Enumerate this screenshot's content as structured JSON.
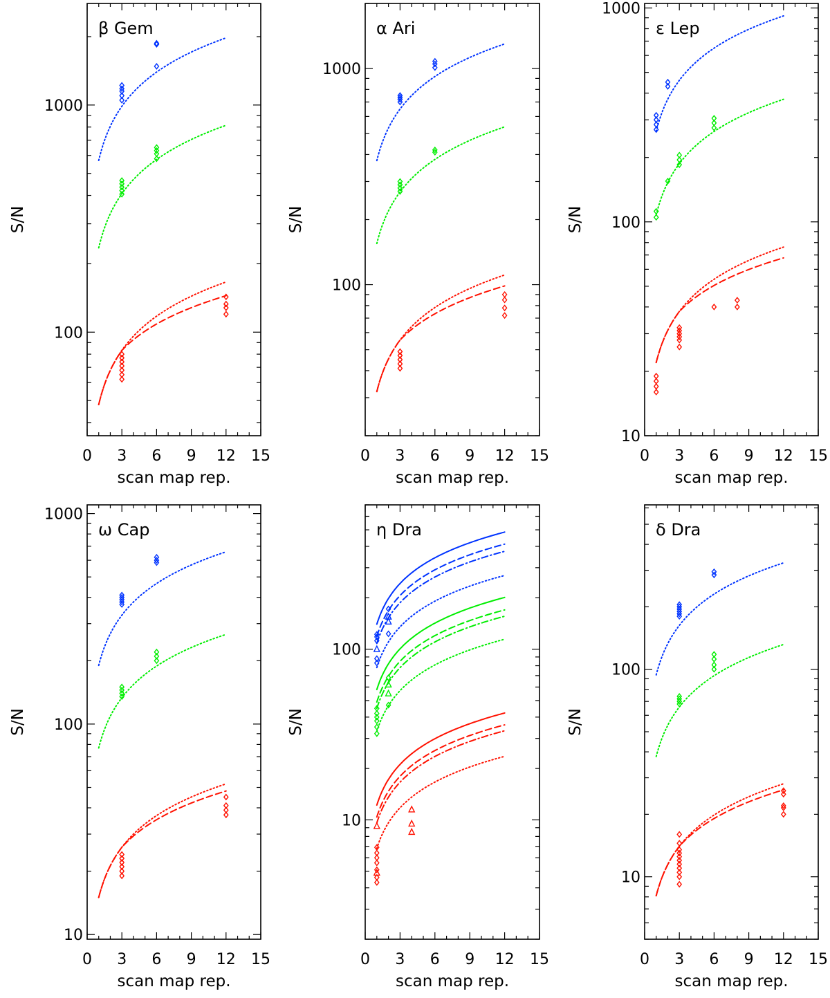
{
  "chart_data": [
    {
      "type": "scatter",
      "title": "β Gem",
      "xlabel": "scan map rep.",
      "ylabel": "S/N",
      "yscale": "log",
      "xlim": [
        0,
        15
      ],
      "ylim": [
        35,
        2800
      ],
      "xticks": [
        0,
        3,
        6,
        9,
        12,
        15
      ],
      "yticks": [
        100,
        1000
      ],
      "xtick_labels": [
        "0",
        "3",
        "6",
        "9",
        "12",
        "15"
      ],
      "ytick_labels": [
        "100",
        "1000"
      ],
      "curves": [
        {
          "color": "#0033ff",
          "style": "dotted",
          "a": 570
        },
        {
          "color": "#00ee00",
          "style": "dotted",
          "a": 235
        },
        {
          "color": "#ff1100",
          "style": "dotted",
          "a": 48
        },
        {
          "color": "#ff1100",
          "style": "dashed",
          "a": 48,
          "xs": 4,
          "sat": 0.74
        }
      ],
      "points": [
        {
          "color": "#0033ff",
          "marker": "diamond",
          "x": 3,
          "y": [
            1050,
            1100,
            1150,
            1180,
            1220
          ]
        },
        {
          "color": "#0033ff",
          "marker": "diamond",
          "x": 6,
          "y": [
            1480,
            1850,
            1870
          ]
        },
        {
          "color": "#00ee00",
          "marker": "diamond",
          "x": 3,
          "y": [
            405,
            420,
            435,
            450,
            465
          ]
        },
        {
          "color": "#00ee00",
          "marker": "diamond",
          "x": 6,
          "y": [
            580,
            610,
            630,
            650
          ]
        },
        {
          "color": "#ff1100",
          "marker": "diamond",
          "x": 3,
          "y": [
            62,
            65,
            68,
            71,
            74,
            77,
            80
          ]
        },
        {
          "color": "#ff1100",
          "marker": "diamond",
          "x": 12,
          "y": [
            120,
            128,
            133,
            143
          ]
        }
      ]
    },
    {
      "type": "scatter",
      "title": "α Ari",
      "xlabel": "scan map rep.",
      "ylabel": "S/N",
      "yscale": "log",
      "xlim": [
        0,
        15
      ],
      "ylim": [
        20,
        2000
      ],
      "xticks": [
        0,
        3,
        6,
        9,
        12,
        15
      ],
      "yticks": [
        100,
        1000
      ],
      "xtick_labels": [
        "0",
        "3",
        "6",
        "9",
        "12",
        "15"
      ],
      "ytick_labels": [
        "100",
        "1000"
      ],
      "curves": [
        {
          "color": "#0033ff",
          "style": "dotted",
          "a": 375
        },
        {
          "color": "#00ee00",
          "style": "dotted",
          "a": 155
        },
        {
          "color": "#ff1100",
          "style": "dotted",
          "a": 32
        },
        {
          "color": "#ff1100",
          "style": "dashed",
          "a": 32,
          "xs": 4,
          "sat": 0.78
        }
      ],
      "points": [
        {
          "color": "#0033ff",
          "marker": "diamond",
          "x": 3,
          "y": [
            700,
            720,
            735,
            750
          ]
        },
        {
          "color": "#0033ff",
          "marker": "diamond",
          "x": 6,
          "y": [
            1010,
            1050,
            1080
          ]
        },
        {
          "color": "#00ee00",
          "marker": "diamond",
          "x": 3,
          "y": [
            270,
            280,
            290,
            300
          ]
        },
        {
          "color": "#00ee00",
          "marker": "diamond",
          "x": 6,
          "y": [
            410,
            420
          ]
        },
        {
          "color": "#ff1100",
          "marker": "diamond",
          "x": 3,
          "y": [
            41,
            43,
            45,
            47,
            49
          ]
        },
        {
          "color": "#ff1100",
          "marker": "diamond",
          "x": 12,
          "y": [
            72,
            78,
            85,
            90
          ]
        }
      ]
    },
    {
      "type": "scatter",
      "title": "ε Lep",
      "xlabel": "scan map rep.",
      "ylabel": "S/N",
      "yscale": "log",
      "xlim": [
        0,
        15
      ],
      "ylim": [
        10,
        1050
      ],
      "xticks": [
        0,
        3,
        6,
        9,
        12,
        15
      ],
      "yticks": [
        10,
        100,
        1000
      ],
      "xtick_labels": [
        "0",
        "3",
        "6",
        "9",
        "12",
        "15"
      ],
      "ytick_labels": [
        "10",
        "100",
        "1000"
      ],
      "curves": [
        {
          "color": "#0033ff",
          "style": "dotted",
          "a": 265
        },
        {
          "color": "#00ee00",
          "style": "dotted",
          "a": 108
        },
        {
          "color": "#ff1100",
          "style": "dotted",
          "a": 22
        },
        {
          "color": "#ff1100",
          "style": "dashed",
          "a": 22,
          "xs": 4,
          "sat": 0.78
        }
      ],
      "points": [
        {
          "color": "#0033ff",
          "marker": "diamond",
          "x": 1,
          "y": [
            270,
            285,
            300,
            315
          ]
        },
        {
          "color": "#0033ff",
          "marker": "diamond",
          "x": 2,
          "y": [
            430,
            450
          ]
        },
        {
          "color": "#00ee00",
          "marker": "diamond",
          "x": 1,
          "y": [
            105,
            112
          ]
        },
        {
          "color": "#00ee00",
          "marker": "diamond",
          "x": 2,
          "y": [
            155
          ]
        },
        {
          "color": "#00ee00",
          "marker": "diamond",
          "x": 3,
          "y": [
            185,
            195,
            205
          ]
        },
        {
          "color": "#00ee00",
          "marker": "diamond",
          "x": 6,
          "y": [
            275,
            290,
            305
          ]
        },
        {
          "color": "#ff1100",
          "marker": "diamond",
          "x": 1,
          "y": [
            16,
            17,
            18,
            19
          ]
        },
        {
          "color": "#ff1100",
          "marker": "diamond",
          "x": 3,
          "y": [
            26,
            28,
            29,
            30,
            31,
            32
          ]
        },
        {
          "color": "#ff1100",
          "marker": "diamond",
          "x": 6,
          "y": [
            40
          ]
        },
        {
          "color": "#ff1100",
          "marker": "diamond",
          "x": 8,
          "y": [
            40,
            43
          ]
        }
      ]
    },
    {
      "type": "scatter",
      "title": "ω Cap",
      "xlabel": "scan map rep.",
      "ylabel": "S/N",
      "yscale": "log",
      "xlim": [
        0,
        15
      ],
      "ylim": [
        9.5,
        1100
      ],
      "xticks": [
        0,
        3,
        6,
        9,
        12,
        15
      ],
      "yticks": [
        10,
        100,
        1000
      ],
      "xtick_labels": [
        "0",
        "3",
        "6",
        "9",
        "12",
        "15"
      ],
      "ytick_labels": [
        "10",
        "100",
        "1000"
      ],
      "curves": [
        {
          "color": "#0033ff",
          "style": "dotted",
          "a": 190
        },
        {
          "color": "#00ee00",
          "style": "dotted",
          "a": 77
        },
        {
          "color": "#ff1100",
          "style": "dotted",
          "a": 15
        },
        {
          "color": "#ff1100",
          "style": "dashed",
          "a": 15,
          "xs": 4,
          "sat": 0.85
        }
      ],
      "points": [
        {
          "color": "#0033ff",
          "marker": "diamond",
          "x": 3,
          "y": [
            370,
            380,
            390,
            400,
            410
          ]
        },
        {
          "color": "#0033ff",
          "marker": "diamond",
          "x": 6,
          "y": [
            585,
            600,
            620
          ]
        },
        {
          "color": "#00ee00",
          "marker": "diamond",
          "x": 3,
          "y": [
            135,
            140,
            145,
            150
          ]
        },
        {
          "color": "#00ee00",
          "marker": "diamond",
          "x": 6,
          "y": [
            200,
            210,
            220
          ]
        },
        {
          "color": "#ff1100",
          "marker": "diamond",
          "x": 3,
          "y": [
            19,
            20,
            21,
            22,
            23,
            24
          ]
        },
        {
          "color": "#ff1100",
          "marker": "diamond",
          "x": 12,
          "y": [
            37,
            39,
            41,
            45
          ]
        }
      ]
    },
    {
      "type": "scatter",
      "title": "η Dra",
      "xlabel": "scan map rep.",
      "ylabel": "S/N",
      "yscale": "log",
      "xlim": [
        0,
        15
      ],
      "ylim": [
        2,
        700
      ],
      "xticks": [
        0,
        3,
        6,
        9,
        12,
        15
      ],
      "yticks": [
        10,
        100
      ],
      "xtick_labels": [
        "0",
        "3",
        "6",
        "9",
        "12",
        "15"
      ],
      "ytick_labels": [
        "10",
        "100"
      ],
      "curves": [
        {
          "color": "#0033ff",
          "style": "solid",
          "a": 140
        },
        {
          "color": "#0033ff",
          "style": "dashed",
          "a": 119
        },
        {
          "color": "#0033ff",
          "style": "dashdot",
          "a": 108
        },
        {
          "color": "#0033ff",
          "style": "dotted",
          "a": 78
        },
        {
          "color": "#00ee00",
          "style": "solid",
          "a": 58
        },
        {
          "color": "#00ee00",
          "style": "dashed",
          "a": 49
        },
        {
          "color": "#00ee00",
          "style": "dashdot",
          "a": 45
        },
        {
          "color": "#00ee00",
          "style": "dotted",
          "a": 33
        },
        {
          "color": "#ff1100",
          "style": "solid",
          "a": 12.2
        },
        {
          "color": "#ff1100",
          "style": "dashed",
          "a": 10.4
        },
        {
          "color": "#ff1100",
          "style": "dashdot",
          "a": 9.6
        },
        {
          "color": "#ff1100",
          "style": "dotted",
          "a": 6.8
        }
      ],
      "points": [
        {
          "color": "#0033ff",
          "marker": "diamond",
          "x": 1,
          "y": [
            83,
            88,
            112,
            118,
            122
          ]
        },
        {
          "color": "#0033ff",
          "marker": "triangle",
          "x": 1,
          "y": [
            100
          ]
        },
        {
          "color": "#0033ff",
          "marker": "diamond",
          "x": 2,
          "y": [
            123,
            172
          ]
        },
        {
          "color": "#0033ff",
          "marker": "triangle",
          "x": 2,
          "y": [
            145,
            155
          ]
        },
        {
          "color": "#00ee00",
          "marker": "diamond",
          "x": 1,
          "y": [
            32,
            35,
            38,
            40,
            42,
            45
          ]
        },
        {
          "color": "#00ee00",
          "marker": "diamond",
          "x": 2,
          "y": [
            47,
            68
          ]
        },
        {
          "color": "#00ee00",
          "marker": "triangle",
          "x": 2,
          "y": [
            55,
            62
          ]
        },
        {
          "color": "#ff1100",
          "marker": "diamond",
          "x": 1,
          "y": [
            4.3,
            4.6,
            5.1,
            5.6,
            6.0,
            6.4,
            6.9
          ]
        },
        {
          "color": "#ff1100",
          "marker": "triangle",
          "x": 1,
          "y": [
            4.9,
            9.2
          ]
        },
        {
          "color": "#ff1100",
          "marker": "triangle",
          "x": 4,
          "y": [
            8.5,
            9.5,
            11.5
          ]
        }
      ]
    },
    {
      "type": "scatter",
      "title": "δ Dra",
      "xlabel": "scan map rep.",
      "ylabel": "S/N",
      "yscale": "log",
      "xlim": [
        0,
        15
      ],
      "ylim": [
        5,
        620
      ],
      "xticks": [
        0,
        3,
        6,
        9,
        12,
        15
      ],
      "yticks": [
        10,
        100
      ],
      "xtick_labels": [
        "0",
        "3",
        "6",
        "9",
        "12",
        "15"
      ],
      "ytick_labels": [
        "10",
        "100"
      ],
      "curves": [
        {
          "color": "#0033ff",
          "style": "dotted",
          "a": 94
        },
        {
          "color": "#00ee00",
          "style": "dotted",
          "a": 38
        },
        {
          "color": "#ff1100",
          "style": "dotted",
          "a": 8.1
        },
        {
          "color": "#ff1100",
          "style": "dashed",
          "a": 8.1,
          "xs": 4,
          "sat": 0.87
        }
      ],
      "points": [
        {
          "color": "#0033ff",
          "marker": "diamond",
          "x": 3,
          "y": [
            180,
            185,
            190,
            195,
            200,
            205
          ]
        },
        {
          "color": "#0033ff",
          "marker": "diamond",
          "x": 6,
          "y": [
            285,
            295
          ]
        },
        {
          "color": "#00ee00",
          "marker": "diamond",
          "x": 3,
          "y": [
            68,
            70,
            72,
            74
          ]
        },
        {
          "color": "#00ee00",
          "marker": "diamond",
          "x": 6,
          "y": [
            100,
            105,
            112,
            118
          ]
        },
        {
          "color": "#ff1100",
          "marker": "diamond",
          "x": 3,
          "y": [
            9.2,
            10,
            10.5,
            11,
            11.5,
            12,
            12.5,
            13,
            13.5,
            14.5,
            16
          ]
        },
        {
          "color": "#ff1100",
          "marker": "diamond",
          "x": 12,
          "y": [
            20,
            21.5,
            22,
            25,
            26
          ]
        }
      ]
    }
  ]
}
